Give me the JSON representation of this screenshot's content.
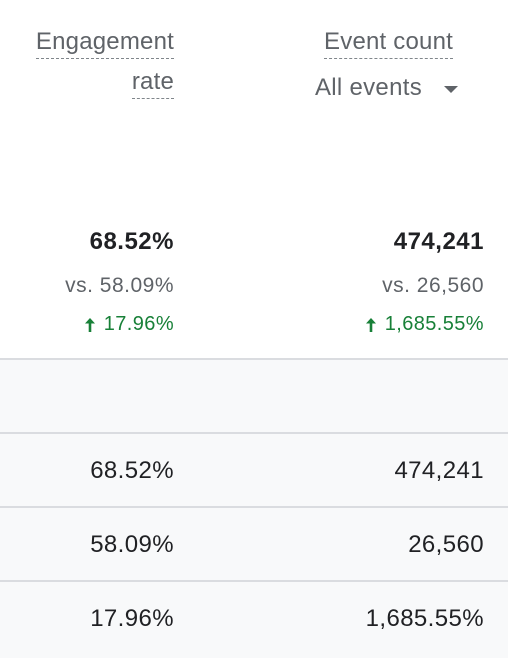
{
  "headers": {
    "engagement_rate": {
      "line1": "Engagement",
      "line2": "rate"
    },
    "event_count": {
      "label": "Event count",
      "selector_value": "All events"
    }
  },
  "summary": {
    "engagement_rate": {
      "total": "68.52%",
      "comparison": "vs. 58.09%",
      "change": "17.96%"
    },
    "event_count": {
      "total": "474,241",
      "comparison": "vs. 26,560",
      "change": "1,685.55%"
    }
  },
  "rows": [
    {
      "engagement_rate": "",
      "event_count": ""
    },
    {
      "engagement_rate": "68.52%",
      "event_count": "474,241"
    },
    {
      "engagement_rate": "58.09%",
      "event_count": "26,560"
    },
    {
      "engagement_rate": "17.96%",
      "event_count": "1,685.55%"
    }
  ],
  "colors": {
    "positive_change": "#188038",
    "header_text": "#5f6368",
    "row_background": "#f8f9fa",
    "divider": "#dadce0"
  },
  "icons": {
    "change_indicator": "arrow-up-icon",
    "dropdown": "caret-down-icon"
  }
}
